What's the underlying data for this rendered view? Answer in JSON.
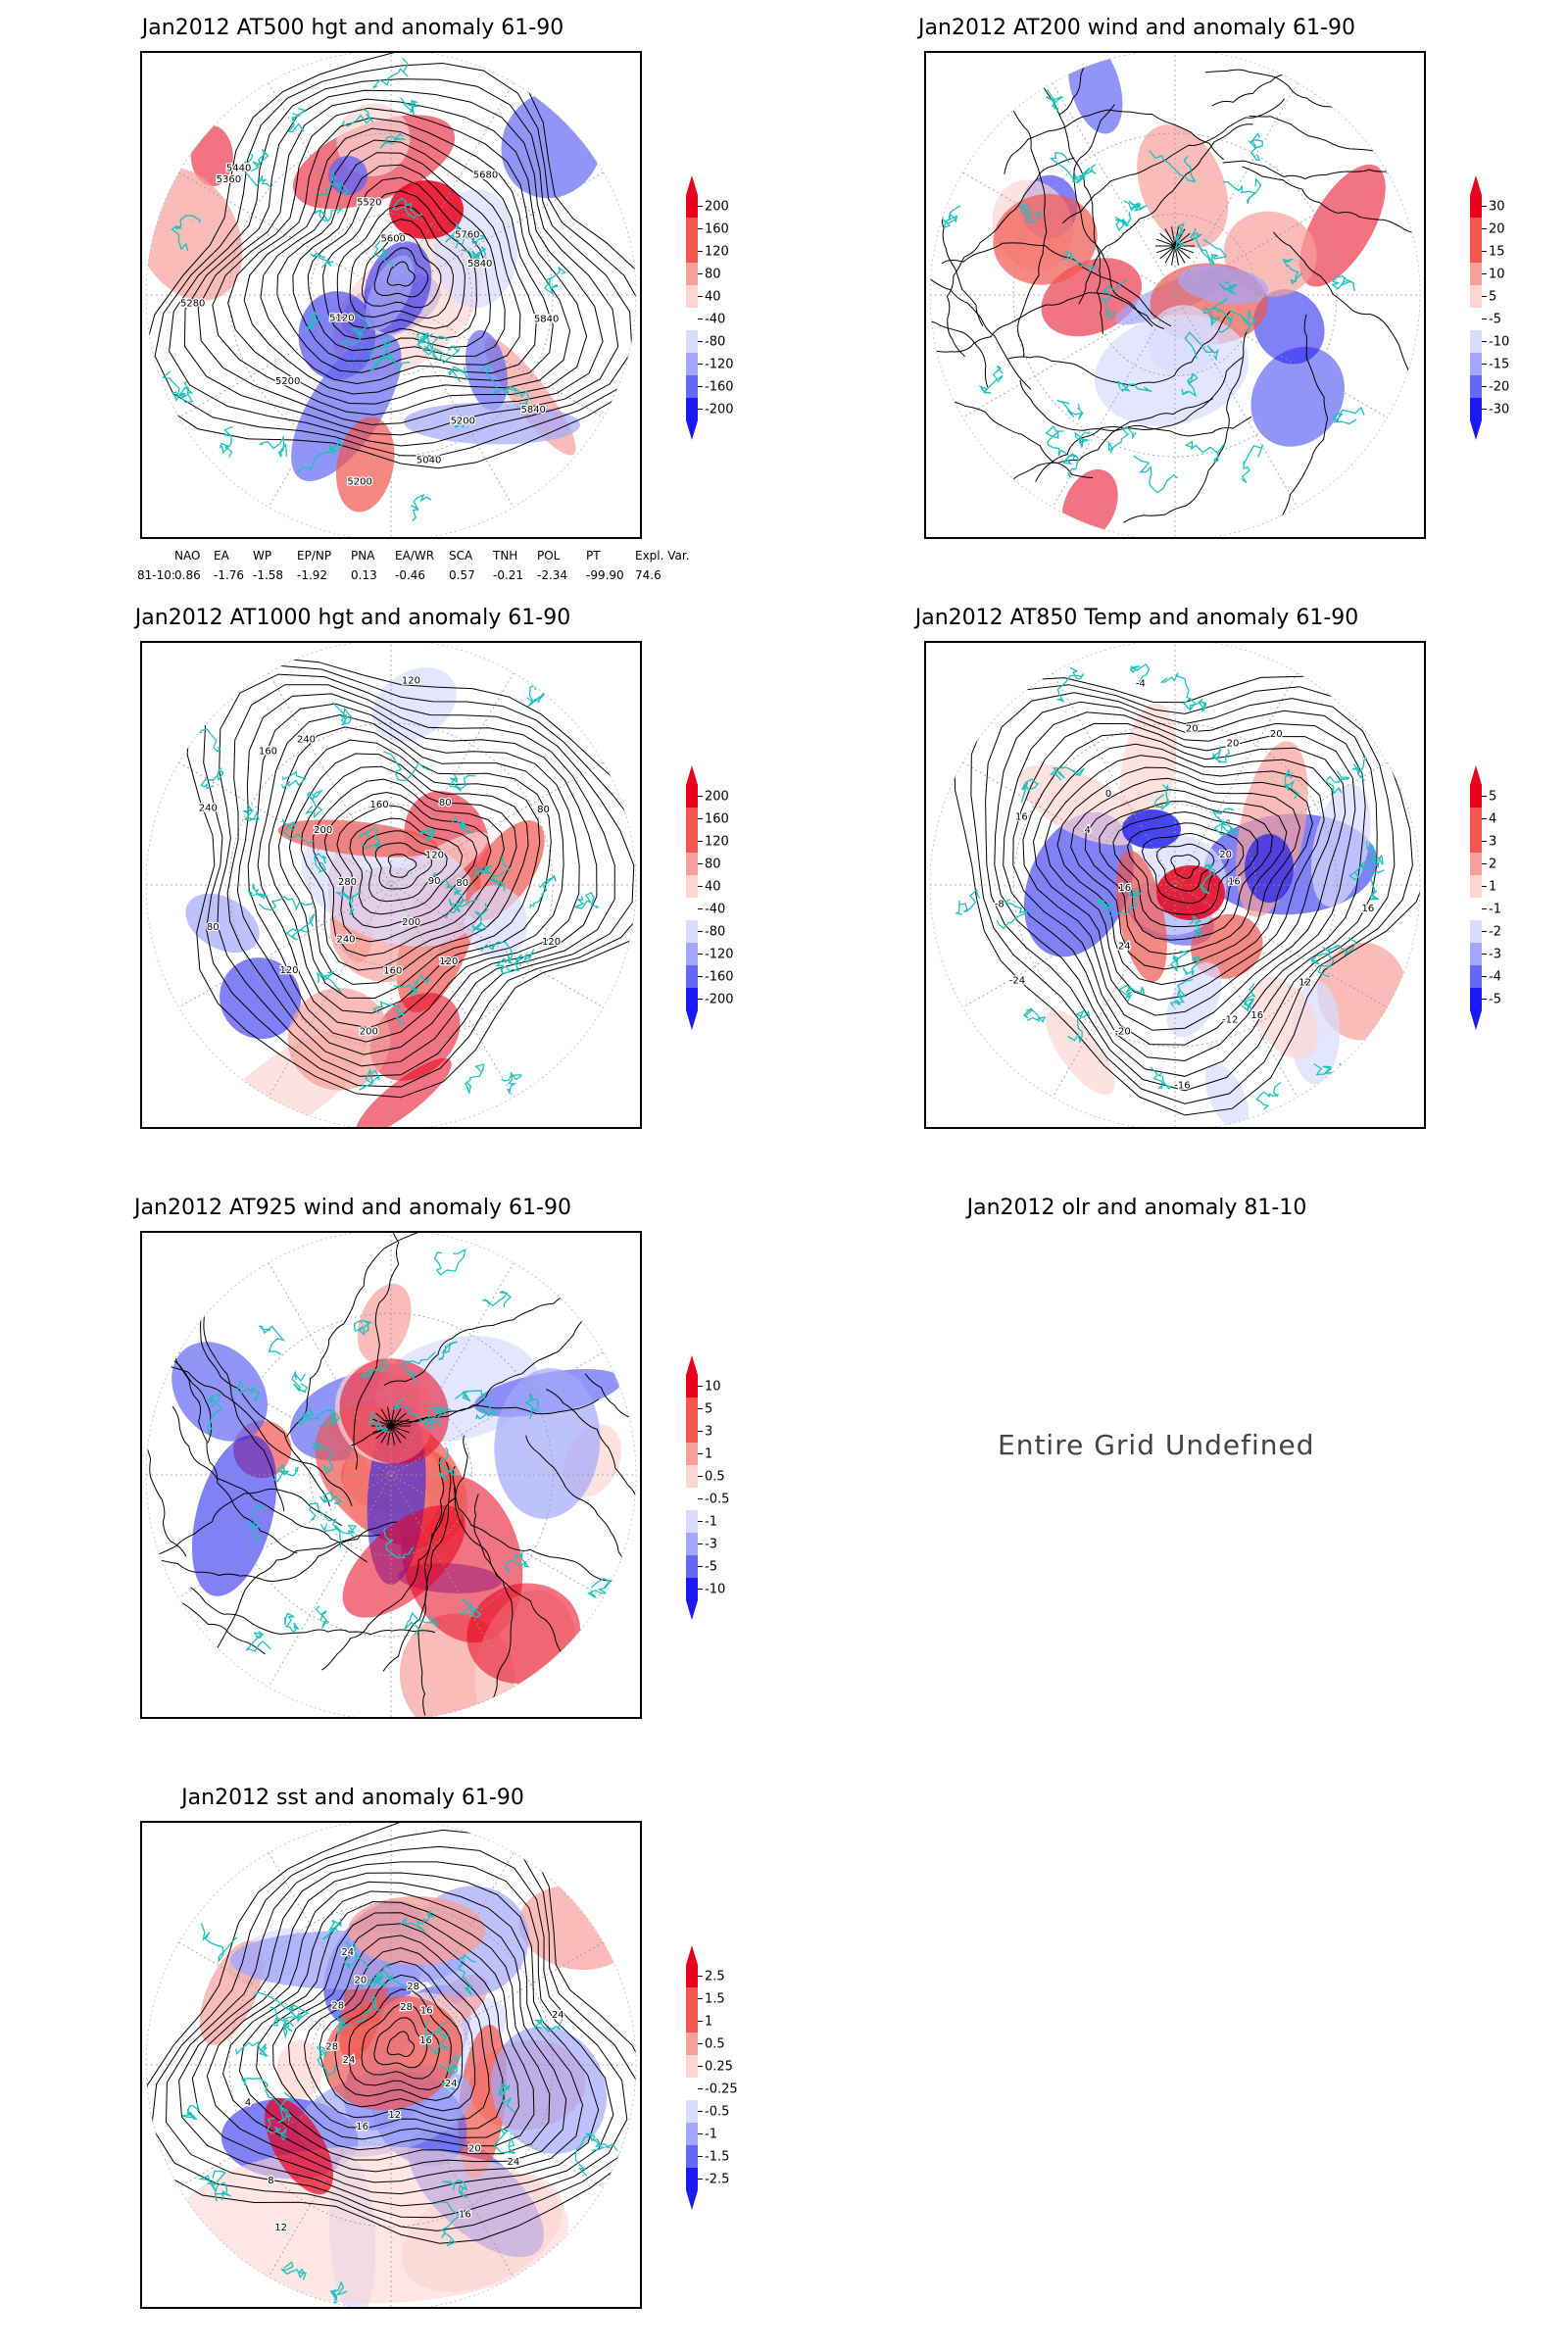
{
  "panels": [
    {
      "id": "p1",
      "title": "Jan2012 AT500 hgt and anomaly 61-90",
      "cbar": [
        "200",
        "160",
        "120",
        "80",
        "40",
        "-40",
        "-80",
        "-120",
        "-160",
        "-200"
      ],
      "contour_labels": [
        "5840",
        "5840",
        "5200",
        "5040",
        "5200",
        "5200",
        "5120",
        "5280",
        "5360",
        "5440",
        "5520",
        "5600",
        "5680",
        "5760",
        "5840"
      ]
    },
    {
      "id": "p2",
      "title": "Jan2012 AT200 wind and anomaly 61-90",
      "cbar": [
        "30",
        "20",
        "15",
        "10",
        "5",
        "-5",
        "-10",
        "-15",
        "-20",
        "-30"
      ],
      "contour_labels": []
    },
    {
      "id": "p3",
      "title": "Jan2012 AT1000 hgt and anomaly 61-90",
      "cbar": [
        "200",
        "160",
        "120",
        "80",
        "40",
        "-40",
        "-80",
        "-120",
        "-160",
        "-200"
      ],
      "contour_labels": [
        "80",
        "120",
        "120",
        "200",
        "160",
        "200",
        "240",
        "120",
        "80",
        "280",
        "240",
        "200",
        "160",
        "240",
        "160",
        "120",
        "80",
        "120",
        "80",
        "90"
      ]
    },
    {
      "id": "p4",
      "title": "Jan2012 AT850 Temp and anomaly 61-90",
      "cbar": [
        "5",
        "4",
        "3",
        "2",
        "1",
        "-1",
        "-2",
        "-3",
        "-4",
        "-5"
      ],
      "contour_labels": [
        "16",
        "12",
        "16",
        "-12",
        "-16",
        "-20",
        "24",
        "-24",
        "-8",
        "16",
        "16",
        "4",
        "0",
        "-4",
        "20",
        "20",
        "20",
        "20",
        "16"
      ]
    },
    {
      "id": "p5",
      "title": "Jan2012 AT925 wind and anomaly 61-90",
      "cbar": [
        "10",
        "5",
        "3",
        "1",
        "0.5",
        "-0.5",
        "-1",
        "-3",
        "-5",
        "-10"
      ],
      "contour_labels": []
    },
    {
      "id": "p6",
      "title": "Jan2012 olr and anomaly 81-10",
      "cbar": [],
      "contour_labels": []
    },
    {
      "id": "p7",
      "title": "Jan2012 sst and anomaly 61-90",
      "cbar": [
        "2.5",
        "1.5",
        "1",
        "0.5",
        "0.25",
        "-0.25",
        "-0.5",
        "-1",
        "-1.5",
        "-2.5"
      ],
      "contour_labels": [
        "24",
        "24",
        "20",
        "16",
        "12",
        "16",
        "12",
        "8",
        "4",
        "24",
        "28",
        "28",
        "20",
        "24",
        "28",
        "28",
        "16",
        "16",
        "24"
      ]
    }
  ],
  "teleconnections": {
    "headers": [
      "NAO",
      "EA",
      "WP",
      "EP/NP",
      "PNA",
      "EA/WR",
      "SCA",
      "TNH",
      "POL",
      "PT",
      "Expl. Var."
    ],
    "row_label": "81-10:",
    "values": [
      "0.86",
      "-1.76",
      "-1.58",
      "-1.92",
      "0.13",
      "-0.46",
      "0.57",
      "-0.21",
      "-2.34",
      "-99.90",
      "74.6"
    ]
  },
  "undefined_message": "Entire Grid Undefined",
  "colors": {
    "red_dark": "#e8001c",
    "red_mid": "#f2564e",
    "red_light": "#f7a09a",
    "red_pale": "#fcd6d2",
    "blue_pale": "#d9dcff",
    "blue_light": "#a3a8fb",
    "blue_mid": "#6368f5",
    "blue_dark": "#1a1af0",
    "coast": "#19c2bd",
    "contour": "#000000"
  }
}
